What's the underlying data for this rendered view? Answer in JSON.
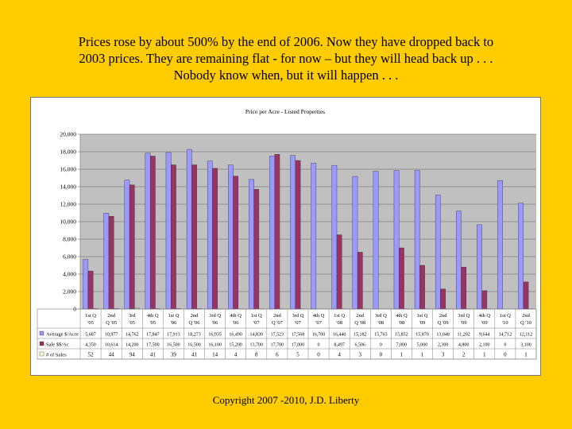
{
  "slide": {
    "headline_line1": "Prices rose by about 500% by the end of 2006. Now they have dropped back to",
    "headline_line2": "2003 prices.  They are remaining flat - for now – but they will head back up . . .",
    "headline_line3": "Nobody know when, but it will happen . . .",
    "copyright": "Copyright 2007 -2010, J.D. Liberty"
  },
  "chart_data": {
    "type": "bar",
    "title": "Price per Acre - Listed Properties",
    "ylim": [
      0,
      20000
    ],
    "yticks": [
      "0",
      "2,000",
      "4,000",
      "6,000",
      "8,000",
      "10,000",
      "12,000",
      "14,000",
      "16,000",
      "18,000",
      "20,000"
    ],
    "grid": true,
    "categories": [
      [
        "1st Q",
        "'05"
      ],
      [
        "2nd",
        "Q '05"
      ],
      [
        "3rd",
        "'05"
      ],
      [
        "4th Q",
        "'05"
      ],
      [
        "1st Q",
        "'06"
      ],
      [
        "2nd",
        "Q '06"
      ],
      [
        "3rd Q",
        "'06"
      ],
      [
        "4th Q",
        "'06"
      ],
      [
        "1st Q",
        "'07"
      ],
      [
        "2nd",
        "Q '07"
      ],
      [
        "3rd Q",
        "'07"
      ],
      [
        "4th Q",
        "'07"
      ],
      [
        "1st Q",
        "'08"
      ],
      [
        "2nd",
        "Q '08"
      ],
      [
        "3rd Q",
        "'08"
      ],
      [
        "4th Q",
        "'08"
      ],
      [
        "1st Q",
        "'09"
      ],
      [
        "2nd",
        "Q '09"
      ],
      [
        "3rd Q",
        "'09"
      ],
      [
        "4th Q",
        "'09"
      ],
      [
        "1st Q",
        "'10"
      ],
      [
        "2nd",
        "Q '10"
      ]
    ],
    "series": [
      {
        "name": "Average $/Acre",
        "color": "#9999ff",
        "values": [
          5687,
          10977,
          14762,
          17847,
          17913,
          18273,
          16935,
          16490,
          14830,
          17523,
          17568,
          16700,
          16440,
          15182,
          15763,
          15852,
          15870,
          13048,
          11202,
          9644,
          14712,
          12112
        ],
        "labels": [
          "5,687",
          "10,977",
          "14,762",
          "17,847",
          "17,913",
          "18,273",
          "16,935",
          "16,490",
          "14,830",
          "17,523",
          "17,568",
          "16,700",
          "16,440",
          "15,182",
          "15,763",
          "15,852",
          "15,870",
          "13,048",
          "11,202",
          "9,644",
          "14,712",
          "12,112"
        ]
      },
      {
        "name": "Sale $$/Ac",
        "color": "#993366",
        "values": [
          4350,
          10614,
          14200,
          17500,
          16500,
          16500,
          16100,
          15200,
          13700,
          17700,
          17000,
          0,
          8497,
          6506,
          0,
          7000,
          5000,
          2300,
          4800,
          2100,
          0,
          3100
        ],
        "labels": [
          "4,350",
          "10,614",
          "14,200",
          "17,500",
          "16,500",
          "16,500",
          "16,100",
          "15,200",
          "13,700",
          "17,700",
          "17,000",
          "0",
          "8,497",
          "6,506",
          "0",
          "7,000",
          "5,000",
          "2,300",
          "4,800",
          "2,100",
          "0",
          "3,100"
        ]
      },
      {
        "name": "# of Sales",
        "color": "#ffffcc",
        "values": [
          52,
          44,
          94,
          41,
          39,
          41,
          14,
          4,
          8,
          6,
          5,
          0,
          4,
          3,
          0,
          1,
          1,
          3,
          2,
          1,
          0,
          1
        ],
        "labels": [
          "52",
          "44",
          "94",
          "41",
          "39",
          "41",
          "14",
          "4",
          "8",
          "6",
          "5",
          "0",
          "4",
          "3",
          "0",
          "1",
          "1",
          "3",
          "2",
          "1",
          "0",
          "1"
        ]
      }
    ]
  }
}
